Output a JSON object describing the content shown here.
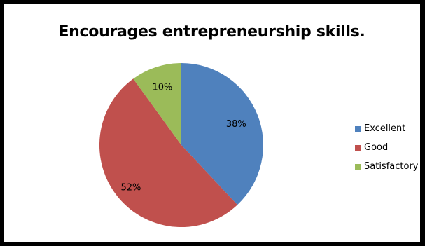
{
  "chart_data": {
    "type": "pie",
    "title": "Encourages entrepreneurship skills.",
    "categories": [
      "Excellent",
      "Good",
      "Satisfactory"
    ],
    "values": [
      38,
      52,
      10
    ],
    "labels": [
      "38%",
      "52%",
      "10%"
    ],
    "colors": [
      "#4f81bd",
      "#c0504d",
      "#9bbb59"
    ],
    "legend_position": "right"
  }
}
